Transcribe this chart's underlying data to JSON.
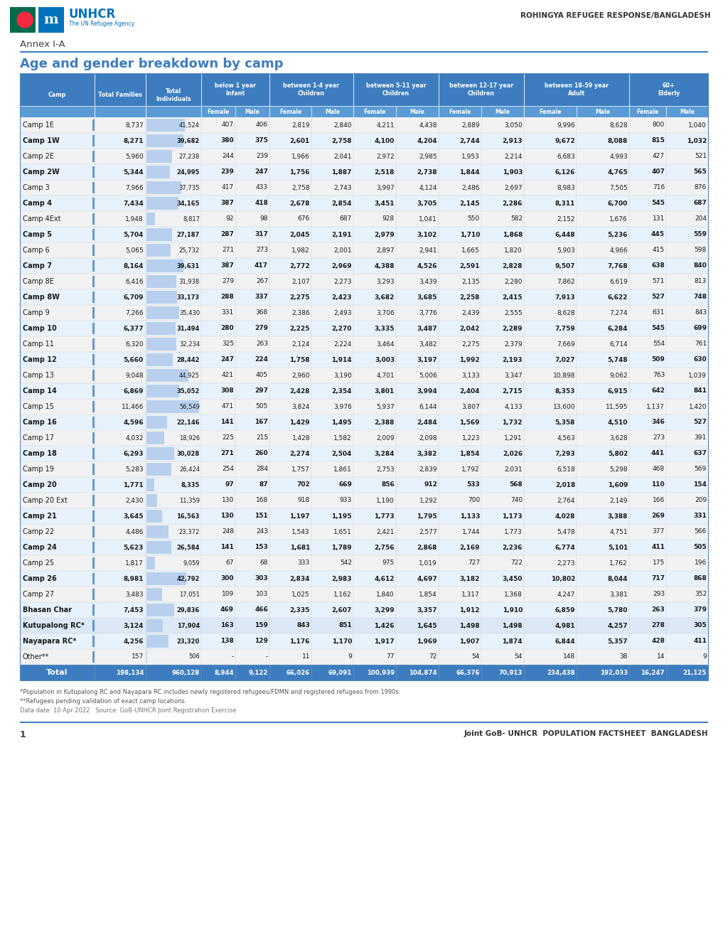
{
  "title_annex": "Annex I-A",
  "title_main": "Age and gender breakdown by camp",
  "header_right": "ROHINGYA REFUGEE RESPONSE/BANGLADESH",
  "footer_note1": "*Population in Kutupalong RC and Nayapara RC includes newly registered refugees/FDMN and registered refugees from 1990s.",
  "footer_note2": "**Refugees pending validation of exact camp locations.",
  "footer_date": "Data date: 10 Apr 2022   Source: GoB-UNHCR Joint Registration Exercise",
  "footer_right": "Joint GoB- UNHCR  POPULATION FACTSHEET  BANGLADESH",
  "page_num": "1",
  "camps": [
    [
      "Camp 1E",
      "8,737",
      "41,524",
      "407",
      "406",
      "2,819",
      "2,840",
      "4,211",
      "4,438",
      "2,889",
      "3,050",
      "9,996",
      "8,628",
      "800",
      "1,040"
    ],
    [
      "Camp 1W",
      "8,271",
      "39,682",
      "380",
      "375",
      "2,601",
      "2,758",
      "4,100",
      "4,204",
      "2,744",
      "2,913",
      "9,672",
      "8,088",
      "815",
      "1,032"
    ],
    [
      "Camp 2E",
      "5,960",
      "27,238",
      "244",
      "239",
      "1,966",
      "2,041",
      "2,972",
      "2,985",
      "1,953",
      "2,214",
      "6,683",
      "4,993",
      "427",
      "521"
    ],
    [
      "Camp 2W",
      "5,344",
      "24,995",
      "239",
      "247",
      "1,756",
      "1,887",
      "2,518",
      "2,738",
      "1,844",
      "1,903",
      "6,126",
      "4,765",
      "407",
      "565"
    ],
    [
      "Camp 3",
      "7,966",
      "37,735",
      "417",
      "433",
      "2,758",
      "2,743",
      "3,997",
      "4,124",
      "2,486",
      "2,697",
      "8,983",
      "7,505",
      "716",
      "876"
    ],
    [
      "Camp 4",
      "7,434",
      "34,165",
      "387",
      "418",
      "2,678",
      "2,854",
      "3,451",
      "3,705",
      "2,145",
      "2,286",
      "8,311",
      "6,700",
      "545",
      "687"
    ],
    [
      "Camp 4Ext",
      "1,948",
      "8,817",
      "92",
      "98",
      "676",
      "687",
      "928",
      "1,041",
      "550",
      "582",
      "2,152",
      "1,676",
      "131",
      "204"
    ],
    [
      "Camp 5",
      "5,704",
      "27,187",
      "287",
      "317",
      "2,045",
      "2,191",
      "2,979",
      "3,102",
      "1,710",
      "1,868",
      "6,448",
      "5,236",
      "445",
      "559"
    ],
    [
      "Camp 6",
      "5,065",
      "25,732",
      "271",
      "273",
      "1,982",
      "2,001",
      "2,897",
      "2,941",
      "1,665",
      "1,820",
      "5,903",
      "4,966",
      "415",
      "598"
    ],
    [
      "Camp 7",
      "8,164",
      "39,631",
      "387",
      "417",
      "2,772",
      "2,969",
      "4,388",
      "4,526",
      "2,591",
      "2,828",
      "9,507",
      "7,768",
      "638",
      "840"
    ],
    [
      "Camp 8E",
      "6,416",
      "31,938",
      "279",
      "267",
      "2,107",
      "2,273",
      "3,293",
      "3,439",
      "2,135",
      "2,280",
      "7,862",
      "6,619",
      "571",
      "813"
    ],
    [
      "Camp 8W",
      "6,709",
      "33,173",
      "288",
      "337",
      "2,275",
      "2,423",
      "3,682",
      "3,685",
      "2,258",
      "2,415",
      "7,913",
      "6,622",
      "527",
      "748"
    ],
    [
      "Camp 9",
      "7,266",
      "35,430",
      "331",
      "368",
      "2,386",
      "2,493",
      "3,706",
      "3,776",
      "2,439",
      "2,555",
      "8,628",
      "7,274",
      "631",
      "843"
    ],
    [
      "Camp 10",
      "6,377",
      "31,494",
      "280",
      "279",
      "2,225",
      "2,270",
      "3,335",
      "3,487",
      "2,042",
      "2,289",
      "7,759",
      "6,284",
      "545",
      "699"
    ],
    [
      "Camp 11",
      "6,320",
      "32,234",
      "325",
      "263",
      "2,124",
      "2,224",
      "3,464",
      "3,482",
      "2,275",
      "2,379",
      "7,669",
      "6,714",
      "554",
      "761"
    ],
    [
      "Camp 12",
      "5,660",
      "28,442",
      "247",
      "224",
      "1,758",
      "1,914",
      "3,003",
      "3,197",
      "1,992",
      "2,193",
      "7,027",
      "5,748",
      "509",
      "630"
    ],
    [
      "Camp 13",
      "9,048",
      "44,925",
      "421",
      "405",
      "2,960",
      "3,190",
      "4,701",
      "5,006",
      "3,133",
      "3,347",
      "10,898",
      "9,062",
      "763",
      "1,039"
    ],
    [
      "Camp 14",
      "6,869",
      "35,052",
      "308",
      "297",
      "2,428",
      "2,354",
      "3,801",
      "3,994",
      "2,404",
      "2,715",
      "8,353",
      "6,915",
      "642",
      "841"
    ],
    [
      "Camp 15",
      "11,466",
      "56,549",
      "471",
      "505",
      "3,824",
      "3,976",
      "5,937",
      "6,144",
      "3,807",
      "4,133",
      "13,600",
      "11,595",
      "1,137",
      "1,420"
    ],
    [
      "Camp 16",
      "4,596",
      "22,146",
      "141",
      "167",
      "1,429",
      "1,495",
      "2,388",
      "2,484",
      "1,569",
      "1,732",
      "5,358",
      "4,510",
      "346",
      "527"
    ],
    [
      "Camp 17",
      "4,032",
      "18,926",
      "225",
      "215",
      "1,428",
      "1,582",
      "2,009",
      "2,098",
      "1,223",
      "1,291",
      "4,563",
      "3,628",
      "273",
      "391"
    ],
    [
      "Camp 18",
      "6,293",
      "30,028",
      "271",
      "260",
      "2,274",
      "2,504",
      "3,284",
      "3,382",
      "1,854",
      "2,026",
      "7,293",
      "5,802",
      "441",
      "637"
    ],
    [
      "Camp 19",
      "5,283",
      "26,424",
      "254",
      "284",
      "1,757",
      "1,861",
      "2,753",
      "2,839",
      "1,792",
      "2,031",
      "6,518",
      "5,298",
      "468",
      "569"
    ],
    [
      "Camp 20",
      "1,771",
      "8,335",
      "97",
      "87",
      "702",
      "669",
      "856",
      "912",
      "533",
      "568",
      "2,018",
      "1,609",
      "110",
      "154"
    ],
    [
      "Camp 20 Ext",
      "2,430",
      "11,359",
      "130",
      "168",
      "918",
      "933",
      "1,190",
      "1,292",
      "700",
      "740",
      "2,764",
      "2,149",
      "166",
      "209"
    ],
    [
      "Camp 21",
      "3,645",
      "16,563",
      "130",
      "151",
      "1,197",
      "1,195",
      "1,773",
      "1,795",
      "1,133",
      "1,173",
      "4,028",
      "3,388",
      "269",
      "331"
    ],
    [
      "Camp 22",
      "4,486",
      "23,372",
      "248",
      "243",
      "1,543",
      "1,651",
      "2,421",
      "2,577",
      "1,744",
      "1,773",
      "5,478",
      "4,751",
      "377",
      "566"
    ],
    [
      "Camp 24",
      "5,623",
      "26,584",
      "141",
      "153",
      "1,681",
      "1,789",
      "2,756",
      "2,868",
      "2,169",
      "2,236",
      "6,774",
      "5,101",
      "411",
      "505"
    ],
    [
      "Camp 25",
      "1,817",
      "9,059",
      "67",
      "68",
      "333",
      "542",
      "975",
      "1,019",
      "727",
      "722",
      "2,273",
      "1,762",
      "175",
      "196"
    ],
    [
      "Camp 26",
      "8,981",
      "42,792",
      "300",
      "303",
      "2,834",
      "2,983",
      "4,612",
      "4,697",
      "3,182",
      "3,450",
      "10,802",
      "8,044",
      "717",
      "868"
    ],
    [
      "Camp 27",
      "3,483",
      "17,051",
      "109",
      "103",
      "1,025",
      "1,162",
      "1,840",
      "1,854",
      "1,317",
      "1,368",
      "4,247",
      "3,381",
      "293",
      "352"
    ],
    [
      "Bhasan Char",
      "7,453",
      "29,836",
      "469",
      "466",
      "2,335",
      "2,607",
      "3,299",
      "3,357",
      "1,912",
      "1,910",
      "6,859",
      "5,780",
      "263",
      "379"
    ],
    [
      "Kutupalong RC*",
      "3,124",
      "17,904",
      "163",
      "159",
      "843",
      "851",
      "1,426",
      "1,645",
      "1,498",
      "1,498",
      "4,981",
      "4,257",
      "278",
      "305"
    ],
    [
      "Nayapara RC*",
      "4,256",
      "23,320",
      "138",
      "129",
      "1,176",
      "1,170",
      "1,917",
      "1,969",
      "1,907",
      "1,874",
      "6,844",
      "5,357",
      "428",
      "411"
    ],
    [
      "Other**",
      "157",
      "506",
      "-",
      "-",
      "11",
      "9",
      "77",
      "72",
      "54",
      "54",
      "148",
      "38",
      "14",
      "9"
    ]
  ],
  "totals": [
    "Total",
    "198,134",
    "960,128",
    "8,944",
    "9,122",
    "66,026",
    "69,091",
    "100,939",
    "104,874",
    "66,376",
    "70,913",
    "234,438",
    "192,033",
    "16,247",
    "21,125"
  ],
  "bold_rows": [
    1,
    3,
    5,
    7,
    9,
    11,
    13,
    15,
    17,
    19,
    21,
    23,
    25,
    27,
    29,
    31,
    33
  ],
  "header_bg": "#3d7dbf",
  "subheader_bg": "#5b9bd5",
  "row_light_bg": "#f2f5fa",
  "row_white_bg": "#ffffff",
  "row_bold_light_bg": "#dde8f5",
  "row_bold_white_bg": "#e8f0fa",
  "total_bg": "#3d7dbf",
  "bar_color": "#b8d0ee",
  "blue_tick_color": "#6699cc"
}
